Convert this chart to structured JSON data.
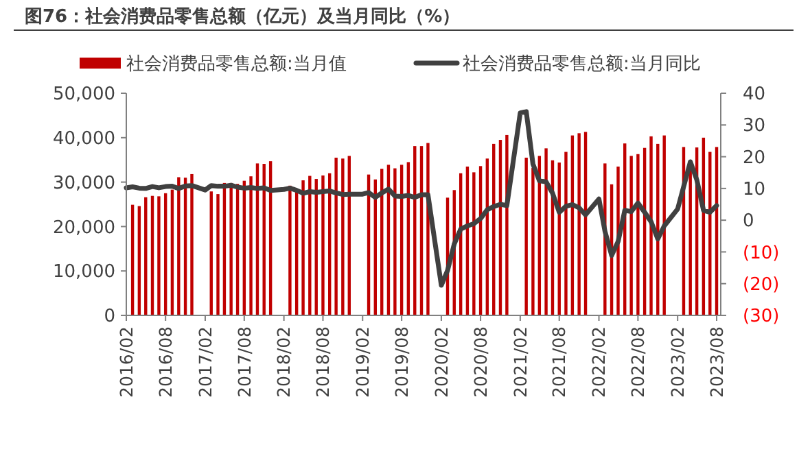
{
  "chart_data": {
    "type": "bar",
    "title": "图76：社会消费品零售总额（亿元）及当月同比（%）",
    "legend": "top",
    "grid": false,
    "xlim": [
      "2016-02",
      "2023-08-20"
    ],
    "xticks": [
      {
        "value": "2016-02",
        "label": "2016/02"
      },
      {
        "value": "2016-08",
        "label": "2016/08"
      },
      {
        "value": "2017-02",
        "label": "2017/02"
      },
      {
        "value": "2017-08",
        "label": "2017/08"
      },
      {
        "value": "2018-02",
        "label": "2018/02"
      },
      {
        "value": "2018-08",
        "label": "2018/08"
      },
      {
        "value": "2019-02",
        "label": "2019/02"
      },
      {
        "value": "2019-08",
        "label": "2019/08"
      },
      {
        "value": "2020-02",
        "label": "2020/02"
      },
      {
        "value": "2020-08",
        "label": "2020/08"
      },
      {
        "value": "2021-02",
        "label": "2021/02"
      },
      {
        "value": "2021-08",
        "label": "2021/08"
      },
      {
        "value": "2022-02",
        "label": "2022/02"
      },
      {
        "value": "2022-08",
        "label": "2022/08"
      },
      {
        "value": "2023-02",
        "label": "2023/02"
      },
      {
        "value": "2023-08",
        "label": "2023/08"
      }
    ],
    "ylim": [
      0,
      50000
    ],
    "yticks": [
      0,
      {
        "value": 10000,
        "label": "10,000"
      },
      {
        "value": 20000,
        "label": "20,000"
      },
      {
        "value": 30000,
        "label": "30,000"
      },
      {
        "value": 40000,
        "label": "40,000"
      },
      {
        "value": 50000,
        "label": "50,000"
      }
    ],
    "y2lim": [
      -30,
      40
    ],
    "y2ticks": [
      {
        "value": -30,
        "label": "(30)"
      },
      {
        "value": -20,
        "label": "(20)"
      },
      {
        "value": -10,
        "label": "(10)"
      },
      0,
      10,
      20,
      30,
      40
    ],
    "series": [
      {
        "name": "社会消费品零售总额:当月值",
        "color": "#c00000",
        "x": [
          "2016-03",
          "2016-04",
          "2016-05",
          "2016-06",
          "2016-07",
          "2016-08",
          "2016-09",
          "2016-10",
          "2016-11",
          "2016-12",
          "2017-03",
          "2017-04",
          "2017-05",
          "2017-06",
          "2017-07",
          "2017-08",
          "2017-09",
          "2017-10",
          "2017-11",
          "2017-12",
          "2018-03",
          "2018-04",
          "2018-05",
          "2018-06",
          "2018-07",
          "2018-08",
          "2018-09",
          "2018-10",
          "2018-11",
          "2018-12",
          "2019-03",
          "2019-04",
          "2019-05",
          "2019-06",
          "2019-07",
          "2019-08",
          "2019-09",
          "2019-10",
          "2019-11",
          "2019-12",
          "2020-03",
          "2020-04",
          "2020-05",
          "2020-06",
          "2020-07",
          "2020-08",
          "2020-09",
          "2020-10",
          "2020-11",
          "2020-12",
          "2021-03",
          "2021-04",
          "2021-05",
          "2021-06",
          "2021-07",
          "2021-08",
          "2021-09",
          "2021-10",
          "2021-11",
          "2021-12",
          "2022-03",
          "2022-04",
          "2022-05",
          "2022-06",
          "2022-07",
          "2022-08",
          "2022-09",
          "2022-10",
          "2022-11",
          "2022-12",
          "2023-03",
          "2023-04",
          "2023-05",
          "2023-06",
          "2023-07",
          "2023-08"
        ],
        "values": [
          24900,
          24600,
          26600,
          26900,
          26800,
          27500,
          28300,
          31100,
          31000,
          31800,
          27900,
          27300,
          29800,
          29800,
          29600,
          30300,
          31300,
          34200,
          34100,
          34700,
          29200,
          28500,
          30400,
          31400,
          30700,
          31500,
          32000,
          35500,
          35300,
          35900,
          31700,
          30600,
          33000,
          33900,
          33100,
          33900,
          34500,
          38100,
          38100,
          38800,
          26500,
          28200,
          32000,
          33500,
          32200,
          33600,
          35300,
          38600,
          39500,
          40600,
          35500,
          33200,
          35900,
          37600,
          34900,
          34400,
          36800,
          40500,
          41000,
          41300,
          34200,
          29500,
          33500,
          38700,
          35900,
          36300,
          37700,
          40300,
          38600,
          40500,
          37900,
          34900,
          37800,
          40000,
          36800,
          37900
        ]
      },
      {
        "name": "社会消费品零售总额:当月同比",
        "type": "line",
        "axis": "y2",
        "color": "#404040",
        "x": [
          "2016-02",
          "2016-03",
          "2016-04",
          "2016-05",
          "2016-06",
          "2016-07",
          "2016-08",
          "2016-09",
          "2016-10",
          "2016-11",
          "2016-12",
          "2017-02",
          "2017-03",
          "2017-04",
          "2017-05",
          "2017-06",
          "2017-07",
          "2017-08",
          "2017-09",
          "2017-10",
          "2017-11",
          "2017-12",
          "2018-02",
          "2018-03",
          "2018-04",
          "2018-05",
          "2018-06",
          "2018-07",
          "2018-08",
          "2018-09",
          "2018-10",
          "2018-11",
          "2018-12",
          "2019-02",
          "2019-03",
          "2019-04",
          "2019-05",
          "2019-06",
          "2019-07",
          "2019-08",
          "2019-09",
          "2019-10",
          "2019-11",
          "2019-12",
          "2020-02",
          "2020-03",
          "2020-04",
          "2020-05",
          "2020-06",
          "2020-07",
          "2020-08",
          "2020-09",
          "2020-10",
          "2020-11",
          "2020-12",
          "2021-02",
          "2021-03",
          "2021-04",
          "2021-05",
          "2021-06",
          "2021-07",
          "2021-08",
          "2021-09",
          "2021-10",
          "2021-11",
          "2021-12",
          "2022-02",
          "2022-03",
          "2022-04",
          "2022-05",
          "2022-06",
          "2022-07",
          "2022-08",
          "2022-09",
          "2022-10",
          "2022-11",
          "2022-12",
          "2023-02",
          "2023-03",
          "2023-04",
          "2023-05",
          "2023-06",
          "2023-07",
          "2023-08"
        ],
        "values": [
          10.2,
          10.5,
          10.1,
          10.0,
          10.6,
          10.2,
          10.6,
          10.7,
          10.0,
          10.8,
          10.9,
          9.5,
          10.9,
          10.7,
          10.7,
          11.0,
          10.4,
          10.1,
          10.3,
          10.0,
          10.2,
          9.4,
          9.7,
          10.1,
          9.4,
          8.5,
          9.0,
          8.8,
          9.0,
          9.2,
          8.6,
          8.1,
          8.2,
          8.2,
          8.7,
          7.2,
          8.6,
          9.8,
          7.6,
          7.5,
          7.8,
          7.2,
          8.0,
          8.0,
          -20.5,
          -15.8,
          -7.5,
          -2.8,
          -1.8,
          -1.1,
          0.5,
          3.3,
          4.3,
          5.0,
          4.6,
          33.8,
          34.2,
          17.7,
          12.4,
          12.1,
          8.5,
          2.5,
          4.4,
          4.9,
          3.9,
          1.7,
          6.7,
          -3.5,
          -11.1,
          -6.7,
          3.1,
          2.7,
          5.4,
          2.5,
          -0.5,
          -5.9,
          -1.8,
          3.5,
          10.6,
          18.4,
          12.7,
          3.1,
          2.5,
          4.6
        ]
      }
    ]
  }
}
